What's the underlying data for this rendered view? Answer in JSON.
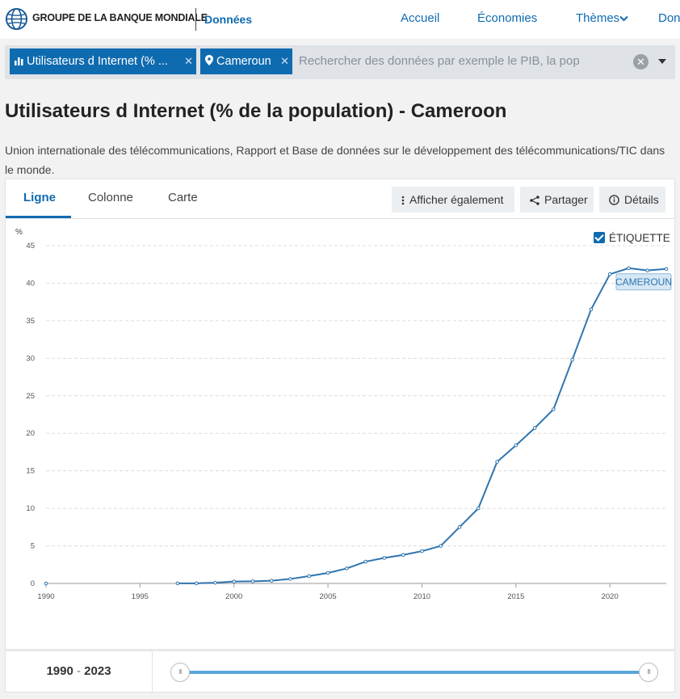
{
  "header": {
    "brand": "GROUPE DE LA BANQUE MONDIALE",
    "section": "Données",
    "nav": [
      {
        "label": "Accueil"
      },
      {
        "label": "Économies"
      },
      {
        "label": "Thèmes"
      },
      {
        "label": "Don"
      }
    ]
  },
  "search": {
    "chip_indicator": "Utilisateurs d Internet (% ...",
    "chip_country": "Cameroun",
    "placeholder": "Rechercher des données par exemple le PIB, la pop"
  },
  "page": {
    "title": "Utilisateurs d Internet (% de la population) - Cameroon",
    "source": "Union internationale des télécommunications, Rapport et Base de données sur le développement des télécommunications/TIC dans le monde."
  },
  "tabs": [
    {
      "label": "Ligne"
    },
    {
      "label": "Colonne"
    },
    {
      "label": "Carte"
    }
  ],
  "toolbar": {
    "also_show": "Afficher également",
    "share": "Partager",
    "details": "Détails"
  },
  "label_toggle": "ÉTIQUETTE",
  "range": {
    "start": "1990",
    "end": "2023",
    "sep": "-"
  },
  "colors": {
    "accent": "#0f6bb0",
    "line": "#2e75b0",
    "grid": "#dddddd"
  },
  "chart_data": {
    "type": "line",
    "title": "Utilisateurs d Internet (% de la population) - Cameroon",
    "ylabel": "%",
    "xlabel": "",
    "ylim": [
      0,
      45
    ],
    "xlim": [
      1990,
      2023
    ],
    "yticks": [
      0,
      5,
      10,
      15,
      20,
      25,
      30,
      35,
      40,
      45
    ],
    "xticks": [
      1990,
      1995,
      2000,
      2005,
      2010,
      2015,
      2020
    ],
    "series": [
      {
        "name": "CAMEROUN",
        "points": [
          {
            "x": 1990,
            "y": 0
          },
          {
            "x": 1997,
            "y": 0.01
          },
          {
            "x": 1998,
            "y": 0.02
          },
          {
            "x": 1999,
            "y": 0.1
          },
          {
            "x": 2000,
            "y": 0.25
          },
          {
            "x": 2001,
            "y": 0.28
          },
          {
            "x": 2002,
            "y": 0.36
          },
          {
            "x": 2003,
            "y": 0.6
          },
          {
            "x": 2004,
            "y": 0.98
          },
          {
            "x": 2005,
            "y": 1.4
          },
          {
            "x": 2006,
            "y": 2.0
          },
          {
            "x": 2007,
            "y": 2.9
          },
          {
            "x": 2008,
            "y": 3.4
          },
          {
            "x": 2009,
            "y": 3.8
          },
          {
            "x": 2010,
            "y": 4.3
          },
          {
            "x": 2011,
            "y": 5.0
          },
          {
            "x": 2012,
            "y": 7.5
          },
          {
            "x": 2013,
            "y": 10.0
          },
          {
            "x": 2014,
            "y": 16.2
          },
          {
            "x": 2015,
            "y": 18.4
          },
          {
            "x": 2016,
            "y": 20.7
          },
          {
            "x": 2017,
            "y": 23.2
          },
          {
            "x": 2018,
            "y": 29.8
          },
          {
            "x": 2019,
            "y": 36.5
          },
          {
            "x": 2020,
            "y": 41.2
          },
          {
            "x": 2021,
            "y": 42.0
          },
          {
            "x": 2022,
            "y": 41.7
          },
          {
            "x": 2023,
            "y": 41.9
          }
        ]
      }
    ]
  }
}
